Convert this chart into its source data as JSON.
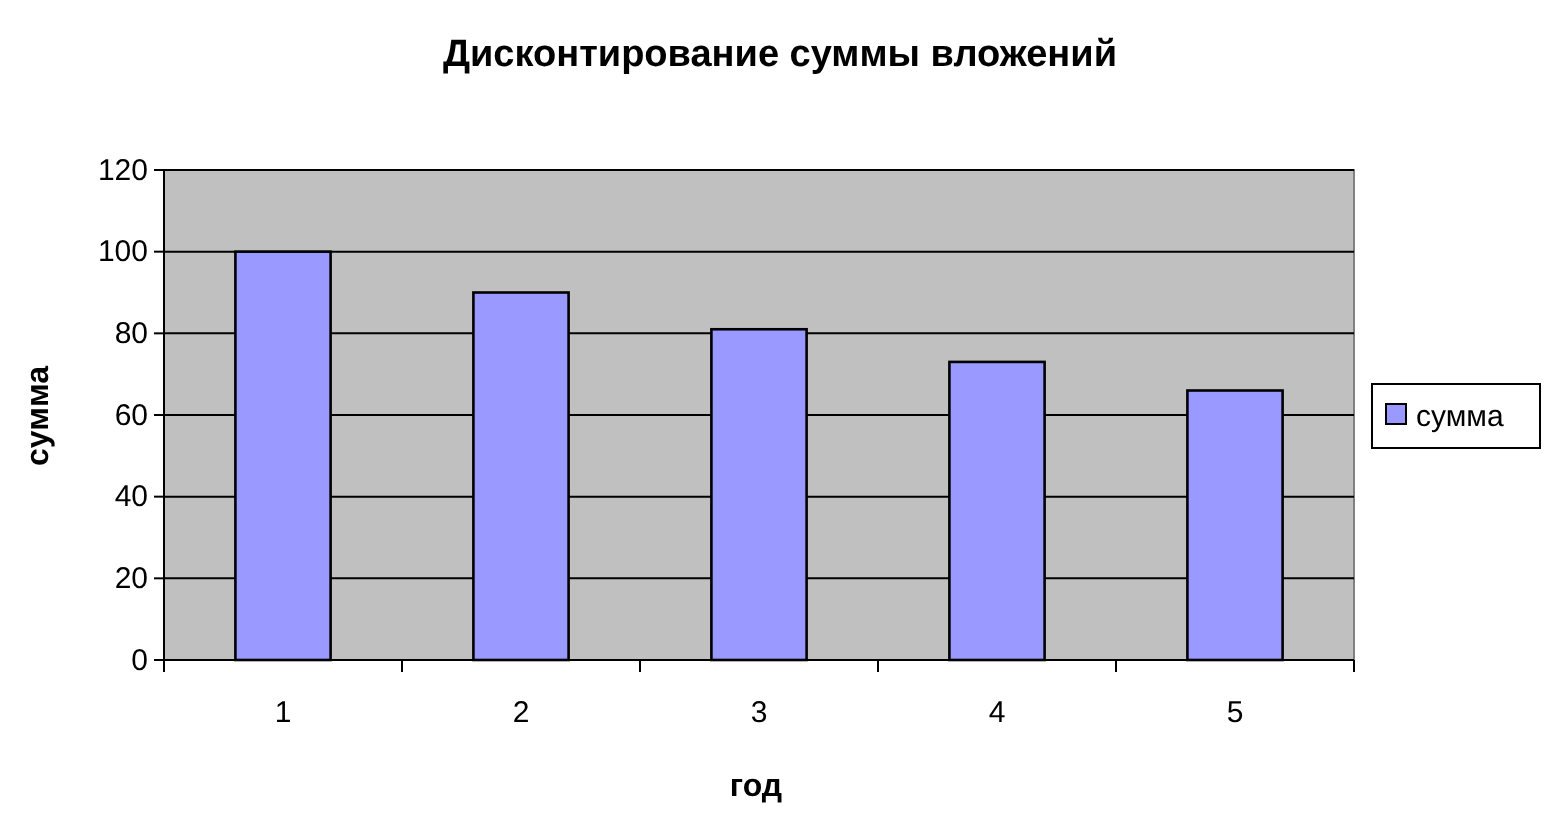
{
  "chart_data": {
    "type": "bar",
    "title": "Дисконтирование суммы вложений",
    "xlabel": "год",
    "ylabel": "сумма",
    "categories": [
      "1",
      "2",
      "3",
      "4",
      "5"
    ],
    "series": [
      {
        "name": "сумма",
        "color": "#9999ff",
        "values": [
          100,
          90,
          81,
          73,
          66
        ]
      }
    ],
    "ylim": [
      0,
      120
    ],
    "yticks": [
      0,
      20,
      40,
      60,
      80,
      100,
      120
    ],
    "grid": "y",
    "legend": "right"
  }
}
